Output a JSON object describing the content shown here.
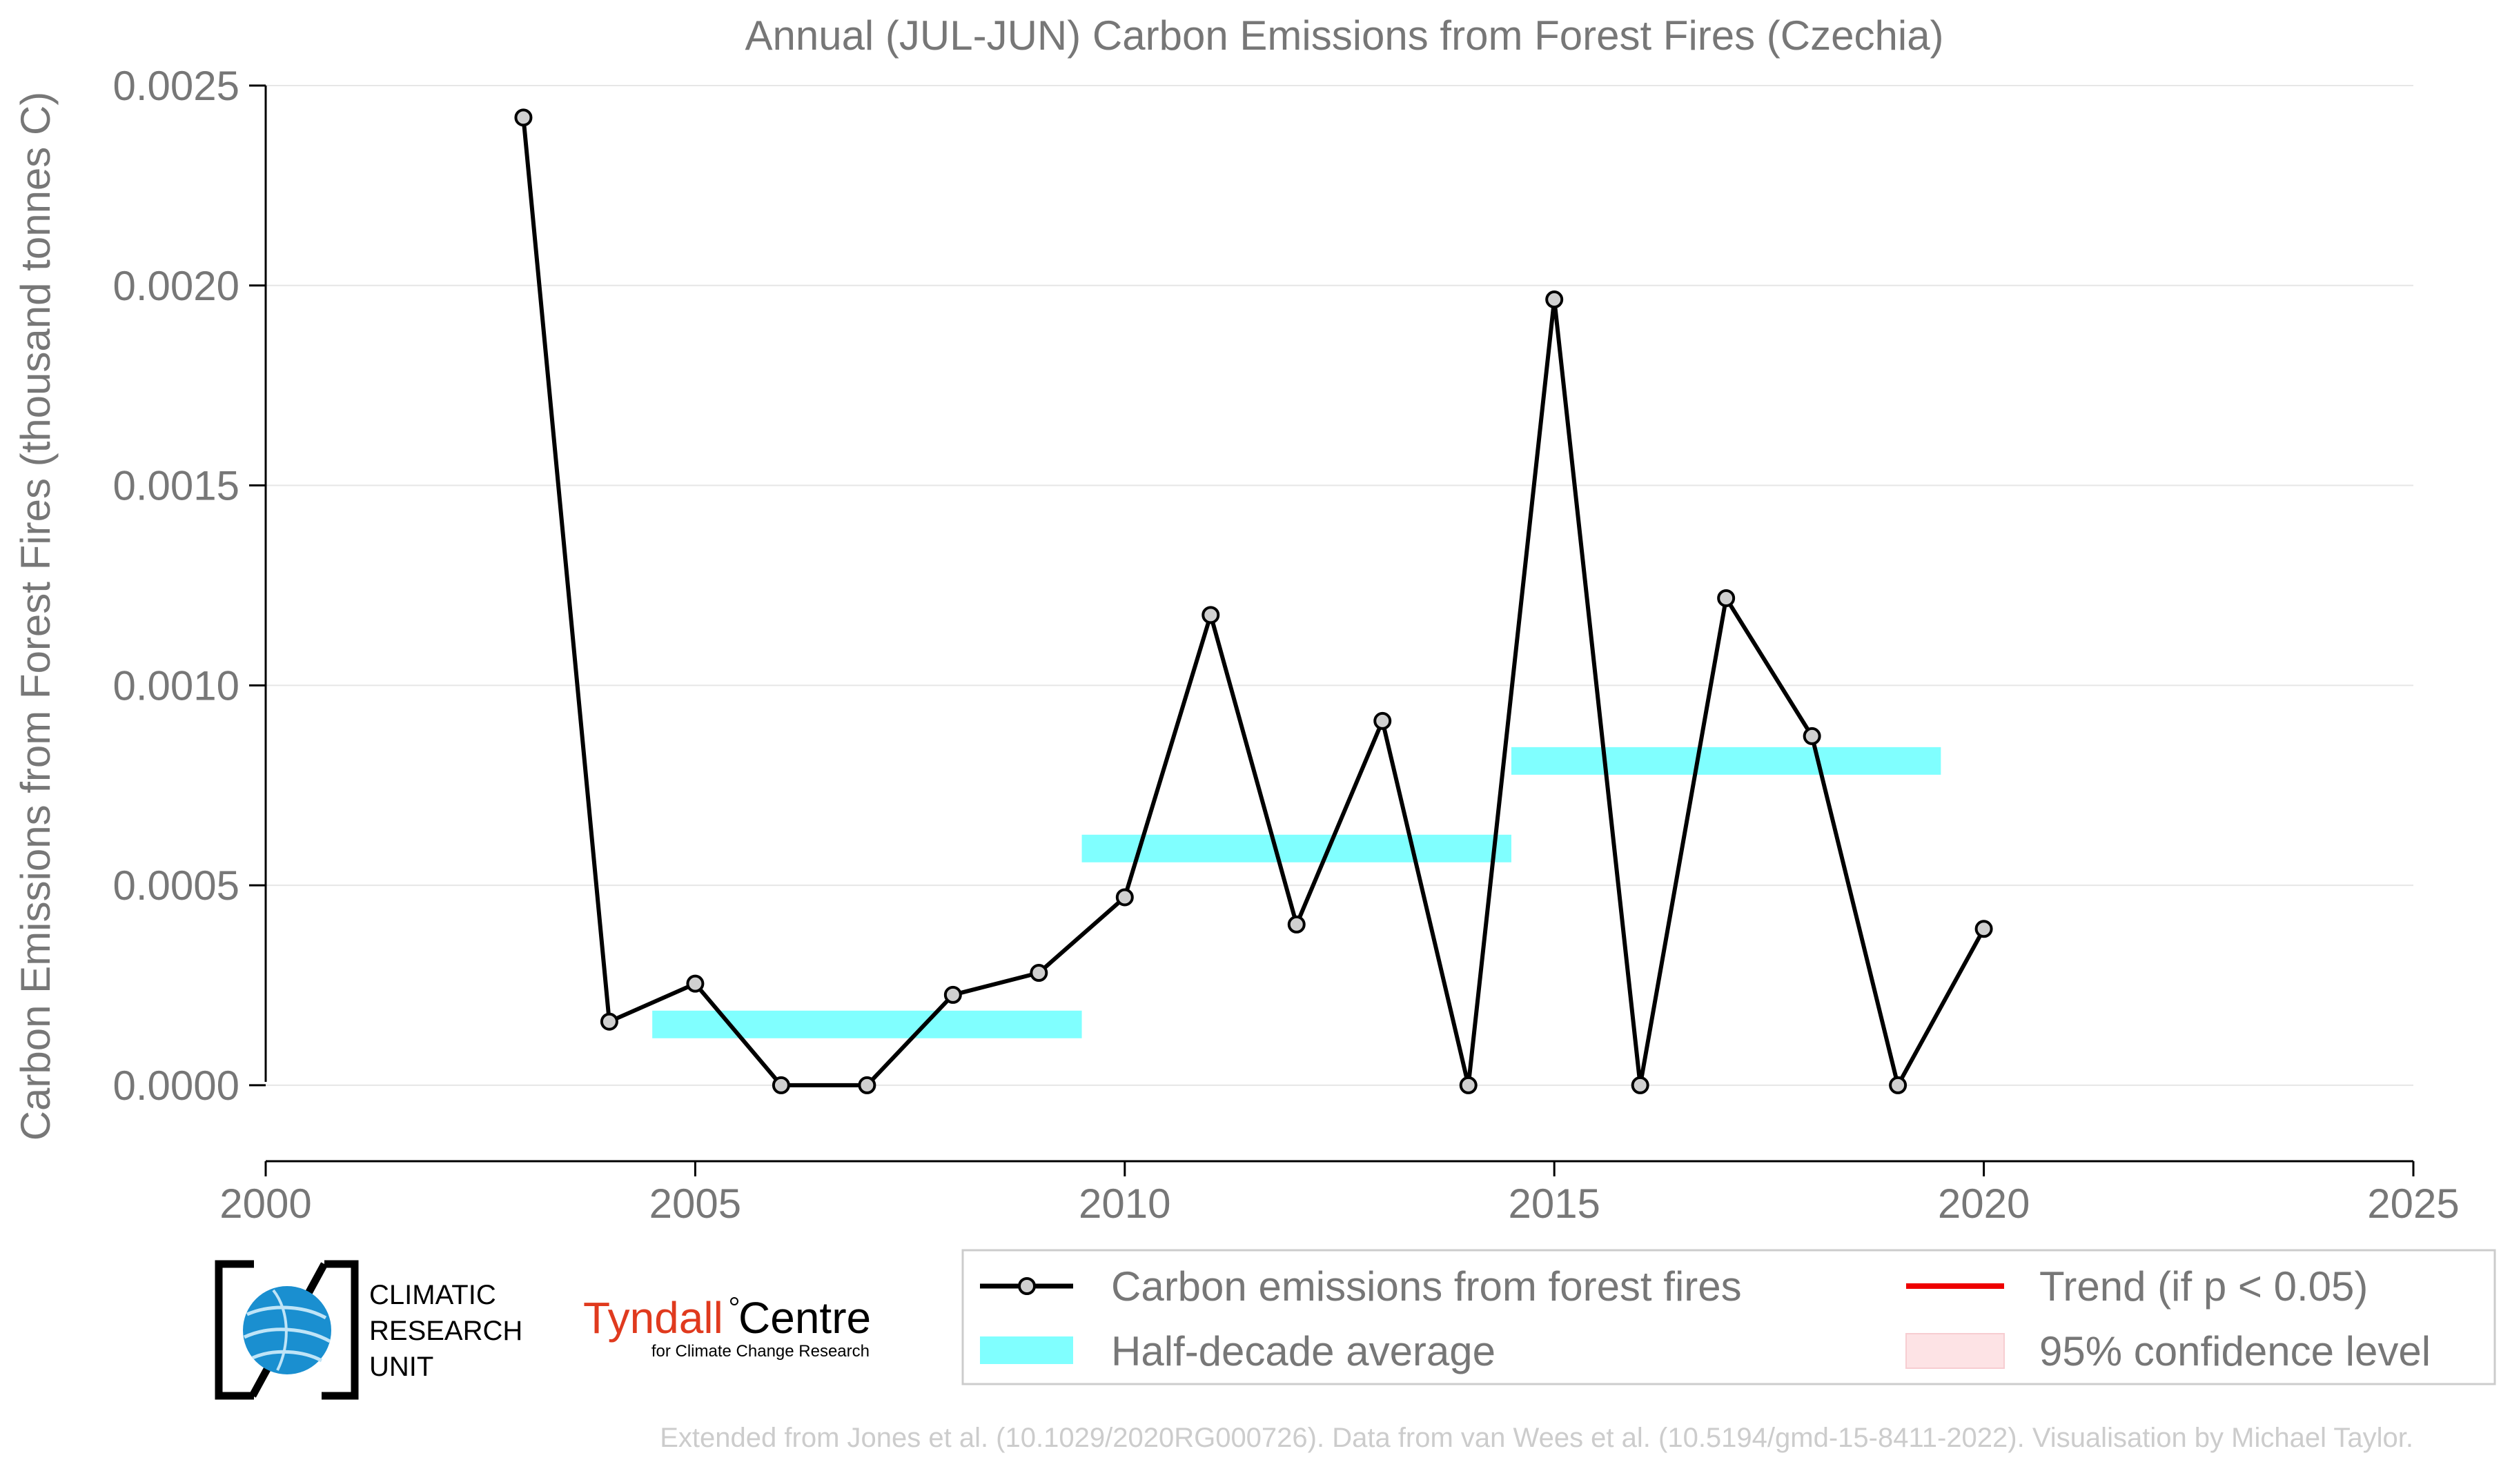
{
  "chart_data": {
    "type": "line",
    "title": "Annual (JUL-JUN) Carbon Emissions from Forest Fires (Czechia)",
    "xlabel": "",
    "ylabel": "Carbon Emissions from Forest Fires (thousand tonnes C)",
    "xlim": [
      2000,
      2025
    ],
    "ylim": [
      -0.00019,
      0.0025
    ],
    "x_ticks": [
      2000,
      2005,
      2010,
      2015,
      2020,
      2025
    ],
    "y_ticks": [
      "0.0000",
      "0.0005",
      "0.0010",
      "0.0015",
      "0.0020",
      "0.0025"
    ],
    "y_tick_values": [
      0,
      0.0005,
      0.001,
      0.0015,
      0.002,
      0.0025
    ],
    "grid": "horizontal",
    "legend_placement": "bottom-right",
    "series": [
      {
        "name": "Carbon emissions from forest fires",
        "color": "#000000",
        "marker_fill": "#d0d0d0",
        "x": [
          2003,
          2004,
          2005,
          2006,
          2007,
          2008,
          2009,
          2010,
          2011,
          2012,
          2013,
          2014,
          2015,
          2016,
          2017,
          2018,
          2019,
          2020
        ],
        "y": [
          0.00242,
          0.000159,
          0.000254,
          0.0,
          0.0,
          0.000226,
          0.000281,
          0.00047,
          0.001176,
          0.000402,
          0.000911,
          0.0,
          0.001965,
          0.0,
          0.001218,
          0.000873,
          0.0,
          0.000391
        ]
      },
      {
        "name": "Half-decade average",
        "color": "#80ffff",
        "segments": [
          {
            "x0": 2004.5,
            "x1": 2009.5,
            "y": 0.000152
          },
          {
            "x0": 2009.5,
            "x1": 2014.5,
            "y": 0.000592
          },
          {
            "x0": 2014.5,
            "x1": 2019.5,
            "y": 0.000811
          }
        ]
      }
    ],
    "legend": [
      {
        "label": "Carbon emissions from forest fires",
        "kind": "line-marker",
        "color": "#000000"
      },
      {
        "label": "Trend (if p < 0.05)",
        "kind": "line",
        "color": "#ee0000"
      },
      {
        "label": "Half-decade average",
        "kind": "band",
        "color": "#80ffff"
      },
      {
        "label": "95% confidence level",
        "kind": "patch",
        "color": "#fde3e5"
      }
    ]
  },
  "logos": {
    "cru_lines": [
      "CLIMATIC",
      "RESEARCH",
      "UNIT"
    ],
    "tyndall_name": "Tyndall",
    "tyndall_centre": "Centre",
    "tyndall_sub": "for Climate Change Research"
  },
  "footer": {
    "credit": "Extended from Jones et al. (10.1029/2020RG000726). Data from van Wees et al. (10.5194/gmd-15-8411-2022). Visualisation by Michael Taylor."
  },
  "colors": {
    "text_gray": "#777777",
    "grid": "#e6e6e6",
    "axis": "#000000",
    "credit": "#cccccc",
    "tyndall_red": "#e03a1e",
    "globe_blue": "#1a8fd0"
  }
}
